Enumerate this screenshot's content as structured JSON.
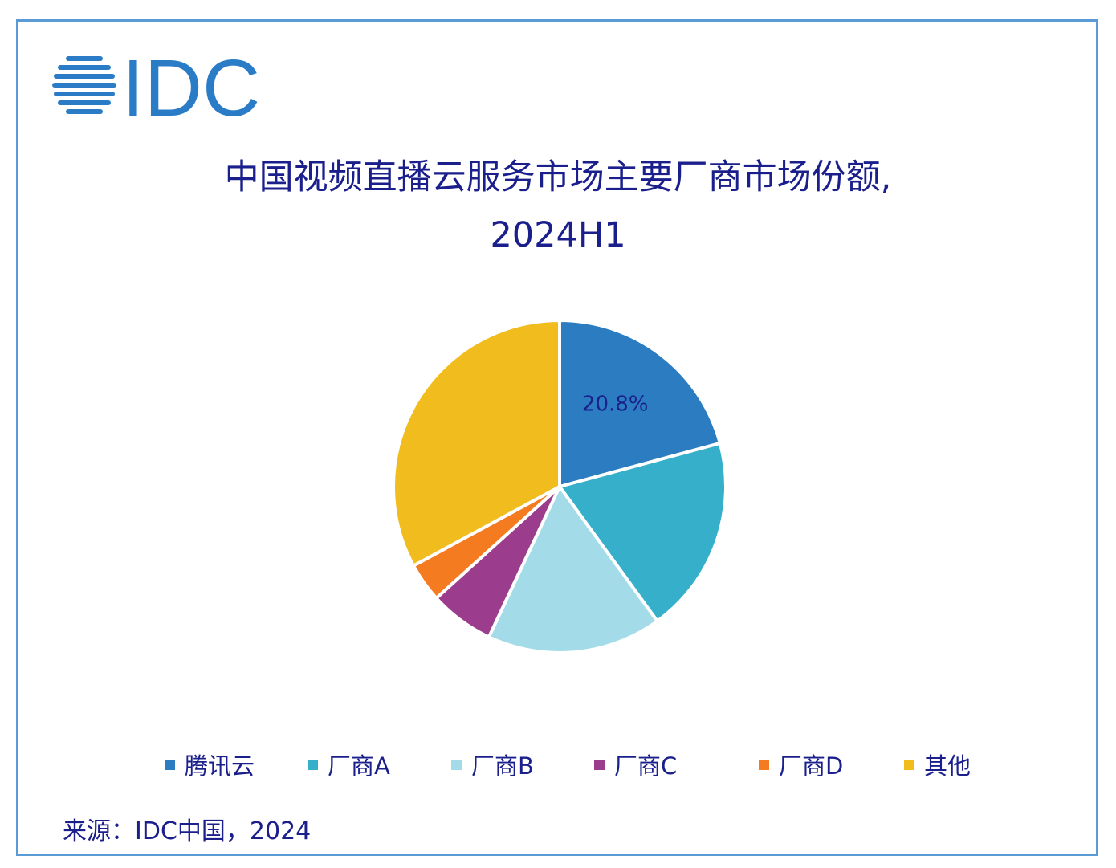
{
  "brand": {
    "logo_text": "IDC",
    "logo_color": "#2b7cc6"
  },
  "chart_data": {
    "type": "pie",
    "title_line1": "中国视频直播云服务市场主要厂商市场份额,",
    "title_line2": "2024H1",
    "legend_position": "bottom",
    "slices": [
      {
        "label": "腾讯云",
        "value": 20.8,
        "color": "#2b7cc0",
        "data_label": "20.8%"
      },
      {
        "label": "厂商A",
        "value": 19.2,
        "color": "#35afca",
        "data_label": ""
      },
      {
        "label": "厂商B",
        "value": 17.0,
        "color": "#a3dce8",
        "data_label": ""
      },
      {
        "label": "厂商C",
        "value": 6.3,
        "color": "#9b3d8c",
        "data_label": ""
      },
      {
        "label": "厂商D",
        "value": 3.8,
        "color": "#f47b20",
        "data_label": ""
      },
      {
        "label": "其他",
        "value": 32.9,
        "color": "#f1bd1e",
        "data_label": ""
      }
    ],
    "label_color": "#1a1f8c"
  },
  "source_text": "来源：IDC中国，2024"
}
